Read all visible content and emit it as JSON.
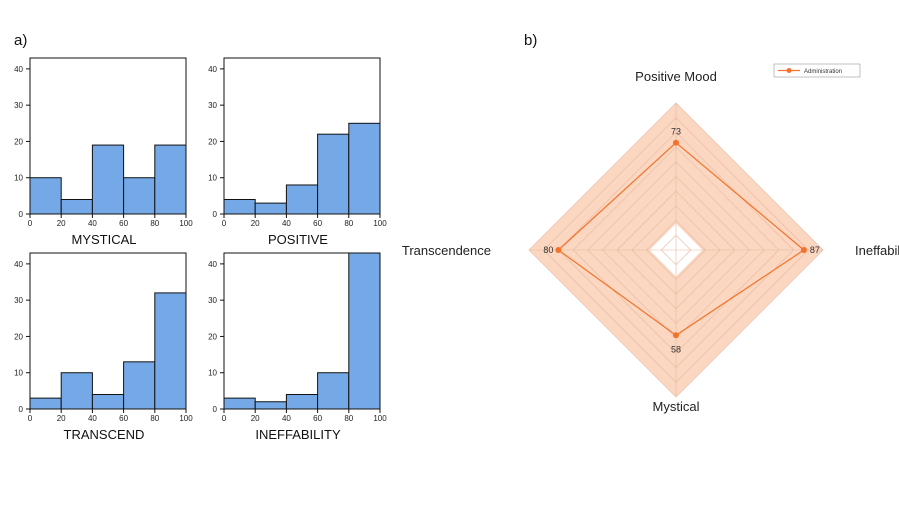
{
  "panels": {
    "a": "a)",
    "b": "b)"
  },
  "chart_data": [
    {
      "type": "bar",
      "title": "",
      "xlabel": "MYSTICAL",
      "ylabel": "",
      "bin_edges": [
        0,
        20,
        40,
        60,
        80,
        100
      ],
      "values": [
        10,
        4,
        19,
        10,
        19
      ],
      "xlim": [
        0,
        100
      ],
      "ylim": [
        0,
        43
      ],
      "xticks": [
        "0",
        "20",
        "40",
        "60",
        "80",
        "100"
      ],
      "yticks": [
        "0",
        "10",
        "20",
        "30",
        "40"
      ]
    },
    {
      "type": "bar",
      "title": "",
      "xlabel": "POSITIVE",
      "ylabel": "",
      "bin_edges": [
        0,
        20,
        40,
        60,
        80,
        100
      ],
      "values": [
        4,
        3,
        8,
        22,
        25
      ],
      "xlim": [
        0,
        100
      ],
      "ylim": [
        0,
        43
      ],
      "xticks": [
        "0",
        "20",
        "40",
        "60",
        "80",
        "100"
      ],
      "yticks": [
        "0",
        "10",
        "20",
        "30",
        "40"
      ]
    },
    {
      "type": "bar",
      "title": "",
      "xlabel": "TRANSCEND",
      "ylabel": "",
      "bin_edges": [
        0,
        20,
        40,
        60,
        80,
        100
      ],
      "values": [
        3,
        10,
        4,
        13,
        32
      ],
      "xlim": [
        0,
        100
      ],
      "ylim": [
        0,
        43
      ],
      "xticks": [
        "0",
        "20",
        "40",
        "60",
        "80",
        "100"
      ],
      "yticks": [
        "0",
        "10",
        "20",
        "30",
        "40"
      ]
    },
    {
      "type": "bar",
      "title": "",
      "xlabel": "INEFFABILITY",
      "ylabel": "",
      "bin_edges": [
        0,
        20,
        40,
        60,
        80,
        100
      ],
      "values": [
        3,
        2,
        4,
        10,
        43
      ],
      "xlim": [
        0,
        100
      ],
      "ylim": [
        0,
        43
      ],
      "xticks": [
        "0",
        "20",
        "40",
        "60",
        "80",
        "100"
      ],
      "yticks": [
        "0",
        "10",
        "20",
        "30",
        "40"
      ]
    },
    {
      "type": "radar",
      "axes": [
        "Positive Mood",
        "Ineffability",
        "Mystical",
        "Transcendence"
      ],
      "series": [
        {
          "name": "Administration",
          "values": [
            73,
            87,
            58,
            80
          ],
          "labels": [
            "73",
            "87",
            "58",
            "80"
          ]
        }
      ],
      "range": [
        0,
        100
      ],
      "grid_levels": 10,
      "legend": "top-right",
      "colors": {
        "line": "#f5722a",
        "fill": "#fbd7c2",
        "grid": "#e8b89c"
      }
    }
  ]
}
